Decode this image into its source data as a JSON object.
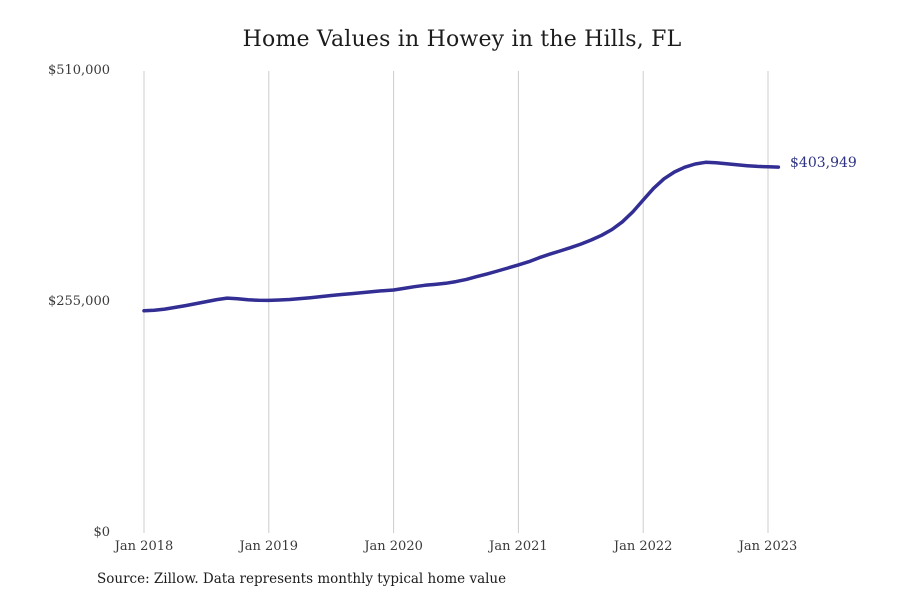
{
  "chart_data": {
    "type": "line",
    "title": "Home Values in Howey in the Hills, FL",
    "source_note": "Source: Zillow. Data represents monthly typical home value",
    "end_label": "$403,949",
    "x_tick_labels": [
      "Jan 2018",
      "Jan 2019",
      "Jan 2020",
      "Jan 2021",
      "Jan 2022",
      "Jan 2023"
    ],
    "y_tick_labels": [
      "$0",
      "$255,000",
      "$510,000"
    ],
    "y_tick_values": [
      0,
      255000,
      510000
    ],
    "ylim": [
      0,
      510000
    ],
    "grid": "vertical-year-lines-only",
    "legend": "none",
    "colors": {
      "line": "#322e93",
      "end_label": "#2d3282",
      "grid": "#cccccc",
      "axis_text": "#3a3a3a",
      "title_text": "#1c1c1c",
      "background": "#ffffff"
    },
    "series": [
      {
        "name": "Monthly typical home value",
        "months": [
          "2018-01",
          "2018-02",
          "2018-03",
          "2018-04",
          "2018-05",
          "2018-06",
          "2018-07",
          "2018-08",
          "2018-09",
          "2018-10",
          "2018-11",
          "2018-12",
          "2019-01",
          "2019-02",
          "2019-03",
          "2019-04",
          "2019-05",
          "2019-06",
          "2019-07",
          "2019-08",
          "2019-09",
          "2019-10",
          "2019-11",
          "2019-12",
          "2020-01",
          "2020-02",
          "2020-03",
          "2020-04",
          "2020-05",
          "2020-06",
          "2020-07",
          "2020-08",
          "2020-09",
          "2020-10",
          "2020-11",
          "2020-12",
          "2021-01",
          "2021-02",
          "2021-03",
          "2021-04",
          "2021-05",
          "2021-06",
          "2021-07",
          "2021-08",
          "2021-09",
          "2021-10",
          "2021-11",
          "2021-12",
          "2022-01",
          "2022-02",
          "2022-03",
          "2022-04",
          "2022-05",
          "2022-06",
          "2022-07",
          "2022-08",
          "2022-09",
          "2022-10",
          "2022-11",
          "2022-12",
          "2023-01",
          "2023-02"
        ],
        "values": [
          245300,
          246000,
          247200,
          249000,
          251000,
          253200,
          255400,
          257600,
          259300,
          258600,
          257400,
          256900,
          256800,
          257200,
          257800,
          258700,
          259800,
          261000,
          262200,
          263300,
          264300,
          265400,
          266500,
          267500,
          268300,
          270000,
          271900,
          273400,
          274400,
          275600,
          277500,
          280000,
          283000,
          286000,
          289200,
          292500,
          295900,
          299500,
          303900,
          307800,
          311300,
          314900,
          318900,
          323400,
          328600,
          335000,
          343500,
          354500,
          367600,
          380500,
          391000,
          398500,
          403800,
          407300,
          409200,
          408800,
          407600,
          406500,
          405500,
          404700,
          404300,
          403949
        ]
      }
    ]
  }
}
